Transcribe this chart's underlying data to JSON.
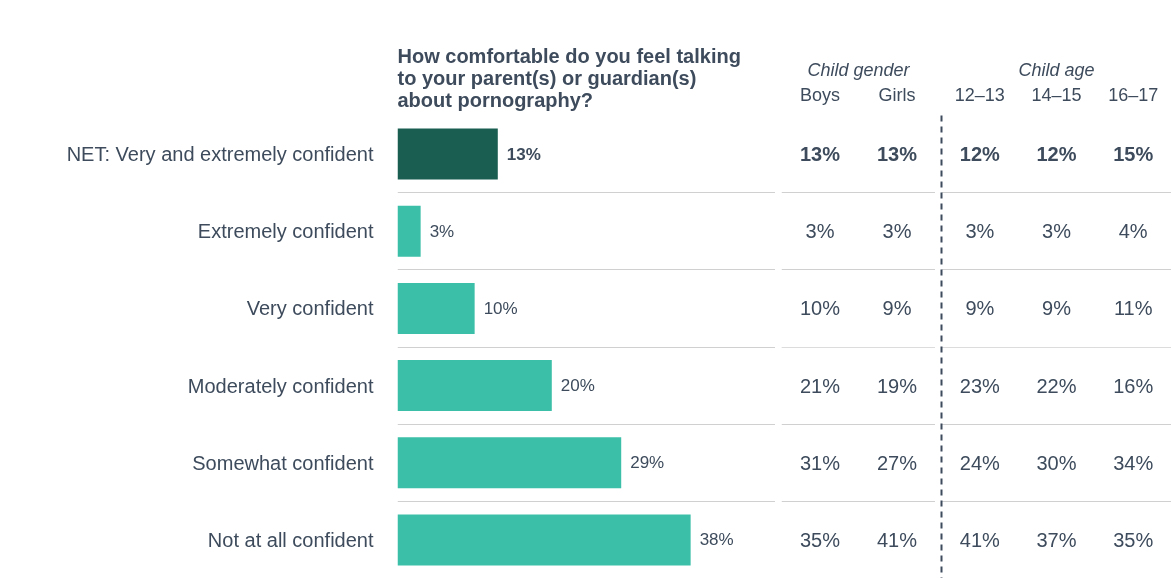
{
  "chart_data": [
    {
      "type": "bar",
      "orientation": "horizontal",
      "title": "How comfortable do you feel talking\nto your parent(s) or guardian(s)\nabout pornography?",
      "categories": [
        "NET: Very and extremely confident",
        "Extremely confident",
        "Very confident",
        "Moderately confident",
        "Somewhat confident",
        "Not at all confident"
      ],
      "values": [
        13,
        3,
        10,
        20,
        29,
        38
      ],
      "colors": [
        "#1a5e52",
        "#3bbfa8",
        "#3bbfa8",
        "#3bbfa8",
        "#3bbfa8",
        "#3bbfa8"
      ],
      "value_labels": [
        "13%",
        "3%",
        "10%",
        "20%",
        "29%",
        "38%"
      ],
      "xlim": [
        0,
        49
      ],
      "tick_labels": "y",
      "grid": "y"
    },
    {
      "type": "heatmap",
      "title": "Child gender",
      "categories": [
        "Boys",
        "Girls"
      ],
      "y_categories": [
        null,
        null,
        null,
        null,
        null,
        null
      ],
      "cells": [
        [
          13,
          13
        ],
        [
          3,
          3
        ],
        [
          10,
          9
        ],
        [
          21,
          19
        ],
        [
          31,
          27
        ],
        [
          35,
          41
        ]
      ],
      "cell_labels": [
        [
          "13%",
          "13%"
        ],
        [
          "3%",
          "3%"
        ],
        [
          "10%",
          "9%"
        ],
        [
          "21%",
          "19%"
        ],
        [
          "31%",
          "27%"
        ],
        [
          "35%",
          "41%"
        ]
      ],
      "tick_labels": "x",
      "grid": "y"
    },
    {
      "type": "heatmap",
      "title": "Child age",
      "categories": [
        "12–13",
        "14–15",
        "16–17"
      ],
      "y_categories": [
        null,
        null,
        null,
        null,
        null,
        null
      ],
      "cells": [
        [
          12,
          12,
          15
        ],
        [
          3,
          3,
          4
        ],
        [
          9,
          9,
          11
        ],
        [
          23,
          22,
          16
        ],
        [
          24,
          30,
          34
        ],
        [
          41,
          37,
          35
        ]
      ],
      "cell_labels": [
        [
          "12%",
          "12%",
          "15%"
        ],
        [
          "3%",
          "3%",
          "4%"
        ],
        [
          "9%",
          "9%",
          "11%"
        ],
        [
          "23%",
          "22%",
          "16%"
        ],
        [
          "24%",
          "30%",
          "34%"
        ],
        [
          "41%",
          "37%",
          "35%"
        ]
      ],
      "tick_labels": "x",
      "grid": "y"
    }
  ]
}
